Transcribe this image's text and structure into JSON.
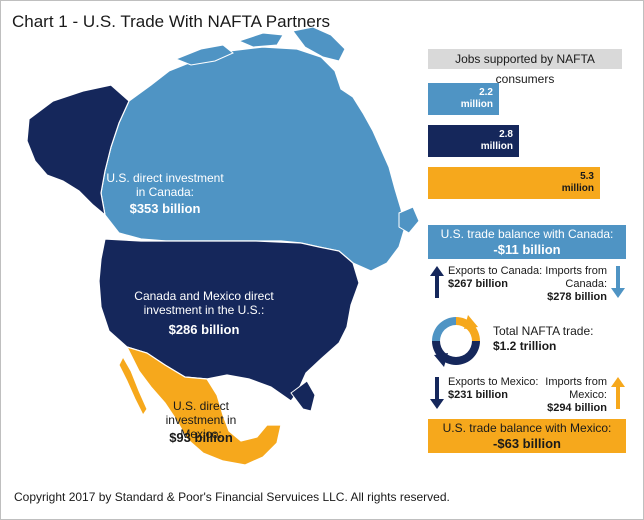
{
  "title": "Chart 1 - U.S. Trade With NAFTA Partners",
  "map": {
    "canada_label": "U.S. direct investment in Canada:",
    "canada_value": "$353 billion",
    "us_label": "Canada and Mexico direct investment in the U.S.:",
    "us_value": "$286 billion",
    "mexico_label": "U.S. direct investment in Mexico:",
    "mexico_value": "$93 billion",
    "colors": {
      "canada": "#4f94c4",
      "us": "#15275b",
      "mexico": "#f6a81c",
      "border": "#ffffff"
    }
  },
  "jobs": {
    "header": "Jobs supported by NAFTA consumers",
    "bars": [
      {
        "value": "2.2",
        "unit": "million",
        "amount": 2.2,
        "color": "#4f94c4"
      },
      {
        "value": "2.8",
        "unit": "million",
        "amount": 2.8,
        "color": "#15275b"
      },
      {
        "value": "5.3",
        "unit": "million",
        "amount": 5.3,
        "color": "#f6a81c"
      }
    ]
  },
  "canada_balance": {
    "label": "U.S. trade balance with Canada:",
    "value": "-$11 billion",
    "color": "#4f94c4"
  },
  "canada_flows": {
    "exports_label": "Exports to Canada:",
    "exports_value": "$267 billion",
    "imports_label": "Imports from Canada:",
    "imports_value": "$278 billion"
  },
  "total": {
    "label": "Total NAFTA trade:",
    "value": "$1.2 trillion"
  },
  "mexico_flows": {
    "exports_label": "Exports to Mexico:",
    "exports_value": "$231 billion",
    "imports_label": "Imports from Mexico:",
    "imports_value": "$294 billion"
  },
  "mexico_balance": {
    "label": "U.S. trade balance with Mexico:",
    "value": "-$63 billion",
    "color": "#f6a81c"
  },
  "copyright": "Copyright 2017 by Standard & Poor's Financial Servuices LLC. All rights reserved."
}
